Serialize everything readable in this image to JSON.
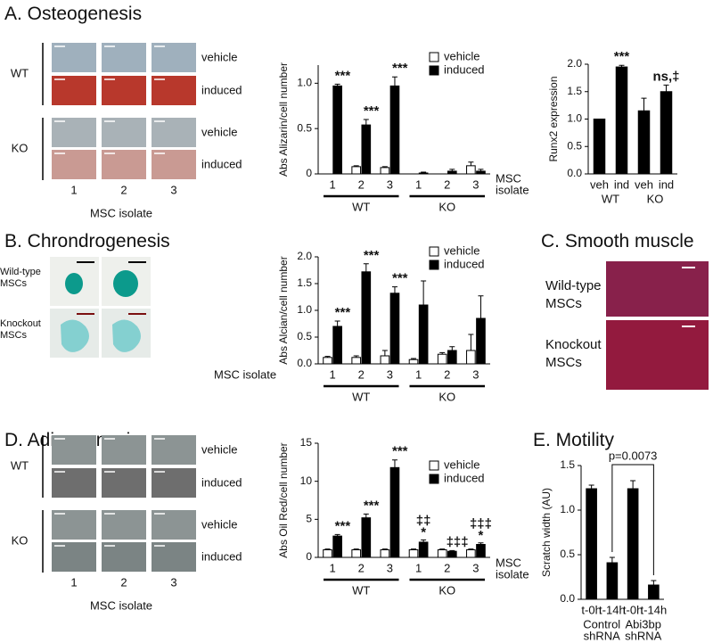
{
  "figure": {
    "A": {
      "title": "A. Osteogenesis",
      "groups": [
        "WT",
        "KO"
      ],
      "rows": [
        "vehicle",
        "induced",
        "vehicle",
        "induced"
      ],
      "columns": [
        "1",
        "2",
        "3"
      ],
      "axis_label": "MSC isolate"
    },
    "B": {
      "title": "B. Chrondrogenesis",
      "rows": [
        [
          "Wild-type",
          "MSCs"
        ],
        [
          "Knockout",
          "MSCs"
        ]
      ]
    },
    "C": {
      "title": "C. Smooth muscle",
      "rows": [
        [
          "Wild-type",
          "MSCs"
        ],
        [
          "Knockout",
          "MSCs"
        ]
      ]
    },
    "D": {
      "title": "D. Adipogenesis",
      "groups": [
        "WT",
        "KO"
      ],
      "rows": [
        "vehicle",
        "induced",
        "vehicle",
        "induced"
      ],
      "columns": [
        "1",
        "2",
        "3"
      ],
      "axis_label": "MSC isolate"
    },
    "E": {
      "title": "E. Motility"
    }
  },
  "chart_data": [
    {
      "type": "bar",
      "y_label": "Abs Alizarin/cell number",
      "x_label": [
        "MSC",
        "isolate"
      ],
      "categories": [
        "1",
        "2",
        "3",
        "1",
        "2",
        "3"
      ],
      "group_labels": [
        "WT",
        "KO"
      ],
      "group_underline": true,
      "ylim": [
        0,
        1.2
      ],
      "yticks": [
        0,
        0.5,
        {
          "value": 1,
          "label": "1.0"
        }
      ],
      "series": [
        {
          "name": "vehicle",
          "color": "#ffffff",
          "values": [
            0,
            0.08,
            0.07,
            0,
            0,
            0.09
          ],
          "errors": [
            0,
            0.01,
            0.01,
            0,
            0,
            0.04
          ]
        },
        {
          "name": "induced",
          "color": "#000000",
          "values": [
            0.97,
            0.54,
            0.97,
            0.01,
            0.03,
            0.03
          ],
          "errors": [
            0.02,
            0.06,
            0.1,
            0.01,
            0.02,
            0.02
          ],
          "annotations": [
            "***",
            "***",
            "***",
            null,
            null,
            null
          ]
        }
      ]
    },
    {
      "type": "bar",
      "y_label": "Runx2 expression",
      "categories": [
        "veh",
        "ind",
        "veh",
        "ind"
      ],
      "group_labels": [
        "WT",
        "KO"
      ],
      "group_underline": false,
      "ylim": [
        0,
        2
      ],
      "yticks": [
        {
          "value": 0,
          "label": "0.0"
        },
        0.5,
        {
          "value": 1,
          "label": "1.0"
        },
        1.5,
        {
          "value": 2,
          "label": "2.0"
        }
      ],
      "series": [
        {
          "color": "#000000",
          "values": [
            1,
            1.95,
            1.15,
            1.5
          ],
          "errors": [
            0,
            0.03,
            0.23,
            0.12
          ],
          "annotations": [
            null,
            "***",
            null,
            "ns,‡"
          ]
        }
      ]
    },
    {
      "type": "bar",
      "y_label": "Abs Alcian/cell number",
      "x_label": "MSC isolate",
      "categories": [
        "1",
        "2",
        "3",
        "1",
        "2",
        "3"
      ],
      "group_labels": [
        "WT",
        "KO"
      ],
      "group_underline": true,
      "ylim": [
        0,
        2
      ],
      "yticks": [
        {
          "value": 0,
          "label": "0.0"
        },
        0.5,
        {
          "value": 1,
          "label": "1.0"
        },
        1.5,
        {
          "value": 2,
          "label": "2.0"
        }
      ],
      "series": [
        {
          "name": "vehicle",
          "color": "#ffffff",
          "values": [
            0.12,
            0.12,
            0.15,
            0.08,
            0.18,
            0.25
          ],
          "errors": [
            0.02,
            0.03,
            0.1,
            0.02,
            0.03,
            0.3
          ]
        },
        {
          "name": "induced",
          "color": "#000000",
          "values": [
            0.7,
            1.72,
            1.32,
            1.1,
            0.25,
            0.85
          ],
          "errors": [
            0.1,
            0.15,
            0.12,
            0.45,
            0.07,
            0.42
          ],
          "annotations": [
            "***",
            "***",
            "***",
            null,
            null,
            null
          ]
        }
      ]
    },
    {
      "type": "bar",
      "y_label": "Abs Oil Red/cell number",
      "x_label": [
        "MSC",
        "isolate"
      ],
      "categories": [
        "1",
        "2",
        "3",
        "1",
        "2",
        "3"
      ],
      "group_labels": [
        "WT",
        "KO"
      ],
      "group_underline": true,
      "ylim": [
        0,
        15
      ],
      "yticks": [
        0,
        5,
        10,
        15
      ],
      "series": [
        {
          "name": "vehicle",
          "color": "#ffffff",
          "values": [
            1,
            1,
            1,
            1,
            1,
            1
          ],
          "errors": [
            0.1,
            0.1,
            0.1,
            0.1,
            0.1,
            0.1
          ]
        },
        {
          "name": "induced",
          "color": "#000000",
          "values": [
            2.8,
            5.2,
            11.8,
            2,
            0.8,
            1.7
          ],
          "errors": [
            0.2,
            0.5,
            1,
            0.3,
            0.1,
            0.2
          ],
          "annotations": [
            "***",
            "***",
            "***",
            [
              "‡‡",
              "*"
            ],
            "‡‡‡",
            [
              "‡‡‡",
              "*"
            ]
          ]
        }
      ]
    },
    {
      "type": "bar",
      "y_label": "Scratch width (AU)",
      "bracket_label": "p=0.0073",
      "categories": [
        "t-0h",
        "t-14h",
        "t-0h",
        "t-14h"
      ],
      "group_labels": [
        [
          "Control",
          "shRNA"
        ],
        [
          "Abi3bp",
          "shRNA"
        ]
      ],
      "group_underline": false,
      "ylim": [
        0,
        1.5
      ],
      "yticks": [
        {
          "value": 0,
          "label": "0.0"
        },
        0.5,
        {
          "value": 1,
          "label": "1.0"
        },
        1.5
      ],
      "series": [
        {
          "color": "#000000",
          "values": [
            1.24,
            0.41,
            1.24,
            0.16
          ],
          "errors": [
            0.04,
            0.06,
            0.09,
            0.05
          ]
        }
      ]
    }
  ]
}
